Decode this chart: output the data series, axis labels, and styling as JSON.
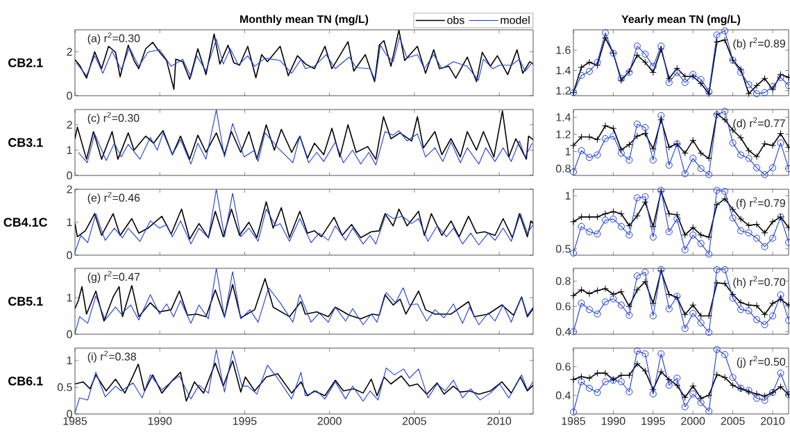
{
  "chart_data": [
    {
      "type": "line",
      "title": "Monthly mean TN (mg/L)",
      "ylabel": "CB2.1",
      "annotations": [
        "(a) r$^{2}$=0.30"
      ],
      "xlim": [
        1985,
        2012
      ],
      "ylim": [
        0,
        3
      ],
      "xticks": [
        1985,
        1990,
        1995,
        2000,
        2005,
        2010
      ],
      "yticks": [
        0,
        2
      ],
      "tick_labels": "y",
      "legend": "top right",
      "series": [
        {
          "name": "obs",
          "color": "#000000",
          "x": [
            1985.0,
            1985.27,
            1985.68,
            1986.16,
            1986.57,
            1986.98,
            1987.39,
            1987.66,
            1988.14,
            1988.48,
            1988.76,
            1989.17,
            1989.58,
            1989.99,
            1990.4,
            1990.83,
            1990.94,
            1991.35,
            1991.76,
            1992.24,
            1992.72,
            1993.2,
            1993.54,
            1994.02,
            1994.36,
            1994.7,
            1995.18,
            1995.66,
            1996.0,
            1996.34,
            1997.09,
            1997.57,
            1998.11,
            1998.59,
            1999.11,
            1999.73,
            2000.14,
            2001.09,
            2001.43,
            2002.11,
            2002.66,
            2002.93,
            2003.21,
            2003.62,
            2004.09,
            2004.43,
            2005.18,
            2005.66,
            2006.14,
            2006.48,
            2007.03,
            2007.44,
            2008.12,
            2008.66,
            2009.0,
            2009.48,
            2009.89,
            2010.5,
            2011.05,
            2011.39,
            2011.8,
            2012.0
          ],
          "values": [
            1.64,
            1.39,
            0.8,
            2.0,
            1.23,
            2.25,
            1.98,
            0.86,
            2.3,
            1.6,
            1.23,
            2.14,
            2.43,
            1.98,
            1.6,
            0.29,
            1.66,
            1.55,
            0.75,
            2.14,
            0.96,
            2.81,
            1.44,
            2.3,
            1.5,
            1.39,
            2.25,
            0.82,
            1.87,
            1.55,
            2.25,
            0.91,
            1.82,
            1.44,
            1.23,
            2.25,
            1.23,
            2.46,
            1.12,
            1.87,
            0.64,
            2.3,
            2.51,
            1.34,
            2.99,
            1.6,
            2.25,
            1.02,
            2.09,
            1.23,
            1.34,
            0.8,
            1.76,
            0.64,
            1.98,
            1.34,
            1.82,
            0.96,
            2.09,
            1.02,
            1.55,
            1.44
          ]
        },
        {
          "name": "model",
          "color": "#1c3ce0",
          "x": [
            1985.07,
            1985.68,
            1986.16,
            1986.64,
            1987.19,
            1987.73,
            1988.21,
            1988.76,
            1989.3,
            1989.99,
            1990.67,
            1991.35,
            1991.83,
            1992.17,
            1992.72,
            1993.33,
            1993.74,
            1994.15,
            1994.63,
            1995.18,
            1995.59,
            1996.2,
            1997.09,
            1997.77,
            1998.32,
            1998.57,
            1999.11,
            1999.8,
            2000.34,
            2001.16,
            2001.57,
            2002.39,
            2002.69,
            2003.0,
            2003.34,
            2003.75,
            2004.13,
            2004.57,
            2005.18,
            2005.59,
            2006.14,
            2006.62,
            2007.3,
            2008.12,
            2008.77,
            2009.07,
            2009.62,
            2010.03,
            2010.71,
            2011.19,
            2011.53,
            2011.94
          ],
          "values": [
            1.5,
            0.91,
            1.82,
            1.02,
            2.03,
            1.18,
            2.19,
            1.34,
            1.98,
            2.09,
            1.34,
            1.66,
            0.86,
            1.82,
            1.12,
            2.57,
            1.44,
            2.14,
            1.39,
            1.82,
            1.34,
            1.71,
            1.6,
            1.02,
            1.66,
            1.23,
            1.34,
            1.87,
            1.23,
            1.76,
            1.28,
            1.23,
            0.7,
            2.3,
            1.87,
            1.55,
            2.67,
            1.71,
            1.87,
            1.23,
            1.87,
            1.23,
            1.55,
            1.34,
            0.7,
            1.66,
            1.23,
            1.39,
            1.39,
            1.66,
            1.12,
            1.5
          ]
        }
      ]
    },
    {
      "type": "line",
      "title": "Yearly mean TN (mg/L)",
      "annotations": [
        "(b) r$^{2}$=0.89"
      ],
      "x": [
        1985,
        1986,
        1987,
        1988,
        1989,
        1990,
        1991,
        1992,
        1993,
        1994,
        1995,
        1996,
        1997,
        1998,
        1999,
        2000,
        2001,
        2002,
        2003,
        2004,
        2005,
        2006,
        2007,
        2008,
        2009,
        2010,
        2011,
        2012
      ],
      "xlim": [
        1985,
        2012
      ],
      "ylim": [
        1.15,
        1.8
      ],
      "xticks": [
        1985,
        1990,
        1995,
        2000,
        2005,
        2010
      ],
      "yticks": [
        1.2,
        1.4,
        1.6
      ],
      "tick_labels": "y",
      "series": [
        {
          "color": "#000000",
          "marker": "cross",
          "values": [
            1.18,
            1.43,
            1.48,
            1.45,
            1.72,
            1.57,
            1.3,
            1.39,
            1.55,
            1.48,
            1.38,
            1.61,
            1.32,
            1.42,
            1.34,
            1.34,
            1.27,
            1.17,
            1.68,
            1.7,
            1.5,
            1.41,
            1.17,
            1.25,
            1.32,
            1.21,
            1.36,
            1.33
          ]
        },
        {
          "color": "#1c3ce0",
          "marker": "circle",
          "values": [
            1.18,
            1.35,
            1.39,
            1.48,
            1.77,
            1.57,
            1.32,
            1.38,
            1.64,
            1.56,
            1.44,
            1.64,
            1.28,
            1.38,
            1.28,
            1.36,
            1.31,
            1.19,
            1.75,
            1.79,
            1.5,
            1.38,
            1.26,
            1.17,
            1.18,
            1.24,
            1.33,
            1.25
          ]
        }
      ]
    },
    {
      "type": "line",
      "ylabel": "CB3.1",
      "annotations": [
        "(c) r$^{2}$=0.30"
      ],
      "xlim": [
        1985,
        2012
      ],
      "ylim": [
        0,
        2.6
      ],
      "xticks": [
        1985,
        1990,
        1995,
        2000,
        2005,
        2010
      ],
      "yticks": [
        0,
        1,
        2
      ],
      "tick_labels": "y",
      "series": [
        {
          "color": "#000000",
          "x": [
            1985.0,
            1985.14,
            1985.68,
            1986.09,
            1986.57,
            1987.19,
            1987.53,
            1988.14,
            1988.48,
            1989.17,
            1989.64,
            1990.19,
            1990.74,
            1991.22,
            1991.76,
            1992.24,
            1992.72,
            1993.33,
            1993.81,
            1994.22,
            1994.77,
            1995.25,
            1995.72,
            1996.27,
            1996.75,
            1997.16,
            1997.77,
            1998.25,
            1998.7,
            1999.11,
            1999.66,
            2000.14,
            2000.61,
            2001.09,
            2001.57,
            2002.25,
            2002.73,
            2003.18,
            2003.62,
            2004.16,
            2004.84,
            2005.18,
            2005.53,
            2006.21,
            2006.62,
            2007.16,
            2007.71,
            2008.12,
            2008.66,
            2009.07,
            2009.69,
            2010.19,
            2010.57,
            2010.98,
            2011.6,
            2011.73,
            2012.0
          ],
          "values": [
            1.45,
            1.91,
            0.64,
            1.73,
            0.64,
            1.73,
            0.64,
            1.68,
            1.0,
            1.55,
            1.27,
            1.77,
            0.82,
            1.55,
            0.64,
            1.59,
            0.91,
            1.68,
            0.82,
            1.73,
            0.91,
            1.73,
            0.64,
            2.0,
            1.0,
            1.82,
            0.91,
            1.55,
            0.68,
            1.27,
            0.82,
            1.86,
            0.73,
            2.0,
            0.91,
            1.14,
            0.64,
            2.32,
            1.45,
            1.68,
            1.36,
            2.32,
            1.09,
            1.73,
            0.82,
            1.45,
            0.73,
            1.73,
            1.0,
            1.73,
            0.73,
            2.55,
            0.73,
            1.45,
            0.64,
            1.55,
            1.41
          ]
        },
        {
          "color": "#1c3ce0",
          "x": [
            1985.2,
            1985.72,
            1986.16,
            1986.84,
            1987.32,
            1987.73,
            1988.14,
            1988.83,
            1989.44,
            1989.85,
            1990.19,
            1990.74,
            1991.22,
            1991.83,
            1992.24,
            1992.72,
            1993.33,
            1993.81,
            1994.29,
            1994.97,
            1995.59,
            1995.79,
            1996.2,
            1996.68,
            1996.95,
            1997.84,
            1998.25,
            1998.77,
            1999.25,
            1999.66,
            2000.34,
            2000.82,
            2001.36,
            2001.84,
            2002.32,
            2002.73,
            2003.27,
            2003.75,
            2004.09,
            2004.57,
            2005.18,
            2005.66,
            2006.21,
            2006.68,
            2007.16,
            2007.71,
            2008.12,
            2008.8,
            2009.21,
            2009.75,
            2010.23,
            2010.71,
            2011.19,
            2011.53,
            2011.94
          ],
          "values": [
            0.91,
            0.5,
            1.64,
            0.59,
            1.27,
            0.73,
            1.23,
            0.64,
            1.5,
            1.0,
            1.68,
            0.82,
            1.41,
            0.45,
            1.27,
            0.64,
            2.59,
            0.73,
            2.05,
            0.73,
            1.0,
            0.55,
            1.68,
            1.32,
            1.09,
            0.5,
            1.55,
            0.5,
            0.91,
            0.55,
            1.32,
            0.5,
            1.0,
            0.45,
            0.91,
            0.41,
            1.73,
            1.59,
            1.77,
            1.36,
            1.64,
            0.73,
            1.09,
            0.55,
            1.32,
            0.5,
            1.09,
            0.45,
            1.09,
            0.55,
            1.09,
            0.55,
            1.36,
            0.73,
            1.27
          ]
        }
      ]
    },
    {
      "type": "line",
      "annotations": [
        "(d) r$^{2}$=0.77"
      ],
      "x": [
        1985,
        1986,
        1987,
        1988,
        1989,
        1990,
        1991,
        1992,
        1993,
        1994,
        1995,
        1996,
        1997,
        1998,
        1999,
        2000,
        2001,
        2002,
        2003,
        2004,
        2005,
        2006,
        2007,
        2008,
        2009,
        2010,
        2011,
        2012
      ],
      "xlim": [
        1985,
        2012
      ],
      "ylim": [
        0.72,
        1.49
      ],
      "xticks": [
        1985,
        1990,
        1995,
        2000,
        2005,
        2010
      ],
      "yticks": [
        0.8,
        1,
        1.2,
        1.4
      ],
      "tick_labels": "y",
      "series": [
        {
          "color": "#000000",
          "marker": "cross",
          "values": [
            1.07,
            1.17,
            1.17,
            1.14,
            1.3,
            1.27,
            1.02,
            1.08,
            1.18,
            1.21,
            1.03,
            1.37,
            1.05,
            1.09,
            0.98,
            1.13,
            0.98,
            0.92,
            1.44,
            1.37,
            1.25,
            1.16,
            1.01,
            0.94,
            1.09,
            1.07,
            1.21,
            1.05
          ]
        },
        {
          "color": "#1c3ce0",
          "marker": "circle",
          "values": [
            0.76,
            1.01,
            0.93,
            0.96,
            1.15,
            1.18,
            0.98,
            0.9,
            1.32,
            1.28,
            0.9,
            1.42,
            0.84,
            1.09,
            0.74,
            0.92,
            0.8,
            0.73,
            1.43,
            1.47,
            1.1,
            0.96,
            0.92,
            0.81,
            0.73,
            0.81,
            1.1,
            0.8
          ]
        }
      ]
    },
    {
      "type": "line",
      "ylabel": "CB4.1C",
      "annotations": [
        "(e) r$^{2}$=0.46"
      ],
      "xlim": [
        1985,
        2012
      ],
      "ylim": [
        0,
        2
      ],
      "xticks": [
        1985,
        1990,
        1995,
        2000,
        2005,
        2010
      ],
      "yticks": [
        0,
        1,
        2
      ],
      "tick_labels": "y",
      "series": [
        {
          "color": "#000000",
          "x": [
            1985.0,
            1985.14,
            1985.61,
            1986.16,
            1986.57,
            1987.25,
            1987.66,
            1988.35,
            1988.76,
            1989.3,
            1990.12,
            1990.67,
            1991.28,
            1991.76,
            1992.31,
            1992.86,
            1993.27,
            1993.74,
            1994.22,
            1994.7,
            1995.25,
            1995.72,
            1996.27,
            1996.68,
            1997.16,
            1997.64,
            1998.25,
            1998.7,
            1999.11,
            1999.52,
            2000.27,
            2000.75,
            2001.3,
            2001.84,
            2002.46,
            2002.93,
            2003.27,
            2003.75,
            2004.09,
            2004.57,
            2005.25,
            2005.59,
            2006.0,
            2006.62,
            2007.16,
            2007.64,
            2008.19,
            2008.66,
            2009.14,
            2009.75,
            2010.23,
            2010.78,
            2011.19,
            2011.66,
            2011.87,
            2012.0
          ],
          "values": [
            0.96,
            0.56,
            0.74,
            1.26,
            0.6,
            1.26,
            0.6,
            1.11,
            0.67,
            0.82,
            1.18,
            0.64,
            1.4,
            0.49,
            0.96,
            0.53,
            1.33,
            0.56,
            1.4,
            0.6,
            1.0,
            0.53,
            1.62,
            0.82,
            1.44,
            0.53,
            1.33,
            0.67,
            0.74,
            0.56,
            1.15,
            0.6,
            0.93,
            0.53,
            0.71,
            0.74,
            1.26,
            0.89,
            1.4,
            0.89,
            1.33,
            0.6,
            1.26,
            0.6,
            1.04,
            0.56,
            1.18,
            0.67,
            0.71,
            0.6,
            1.11,
            0.53,
            1.26,
            0.56,
            1.04,
            0.96
          ]
        },
        {
          "color": "#1c3ce0",
          "x": [
            1985.0,
            1985.34,
            1985.75,
            1986.23,
            1986.78,
            1987.32,
            1987.8,
            1988.14,
            1988.83,
            1989.44,
            1989.99,
            1990.4,
            1990.74,
            1991.22,
            1991.83,
            1992.31,
            1992.86,
            1993.33,
            1993.81,
            1994.29,
            1994.77,
            1995.25,
            1995.79,
            1996.27,
            1996.82,
            1997.09,
            1997.64,
            1998.25,
            1998.91,
            1999.39,
            1999.93,
            2000.34,
            2000.95,
            2001.36,
            2001.98,
            2002.39,
            2002.73,
            2003.34,
            2003.75,
            2004.3,
            2004.84,
            2005.25,
            2005.8,
            2006.34,
            2006.89,
            2007.3,
            2007.84,
            2008.32,
            2008.8,
            2009.35,
            2009.75,
            2010.23,
            2010.71,
            2011.25,
            2011.66,
            2012.0
          ],
          "values": [
            0.09,
            0.6,
            0.38,
            1.26,
            0.45,
            0.82,
            0.53,
            0.82,
            0.42,
            1.04,
            0.82,
            0.93,
            0.56,
            1.04,
            0.34,
            0.82,
            0.53,
            2.0,
            0.56,
            1.88,
            0.56,
            0.82,
            0.42,
            1.4,
            0.89,
            0.96,
            0.42,
            1.11,
            0.38,
            0.67,
            0.45,
            0.89,
            0.45,
            0.82,
            0.34,
            0.6,
            0.34,
            1.26,
            1.11,
            1.18,
            0.96,
            1.11,
            0.42,
            0.89,
            0.56,
            0.82,
            0.34,
            0.67,
            0.31,
            0.67,
            0.45,
            0.82,
            0.42,
            1.26,
            0.67,
            0.93
          ]
        }
      ]
    },
    {
      "type": "line",
      "annotations": [
        "(f) r$^{2}$=0.79"
      ],
      "x": [
        1985,
        1986,
        1987,
        1988,
        1989,
        1990,
        1991,
        1992,
        1993,
        1994,
        1995,
        1996,
        1997,
        1998,
        1999,
        2000,
        2001,
        2002,
        2003,
        2004,
        2005,
        2006,
        2007,
        2008,
        2009,
        2010,
        2011,
        2012
      ],
      "xlim": [
        1985,
        2012
      ],
      "ylim": [
        0.44,
        1.06
      ],
      "xticks": [
        1985,
        1990,
        1995,
        2000,
        2005,
        2010
      ],
      "yticks": [
        0.5,
        1
      ],
      "tick_labels": "y",
      "series": [
        {
          "color": "#000000",
          "marker": "cross",
          "values": [
            0.755,
            0.8,
            0.8,
            0.8,
            0.83,
            0.85,
            0.83,
            0.717,
            0.81,
            0.94,
            0.71,
            1.04,
            0.83,
            0.82,
            0.63,
            0.7,
            0.63,
            0.61,
            0.915,
            0.97,
            0.87,
            0.78,
            0.72,
            0.73,
            0.65,
            0.755,
            0.8,
            0.7
          ]
        },
        {
          "color": "#1c3ce0",
          "marker": "circle",
          "values": [
            0.46,
            0.71,
            0.66,
            0.64,
            0.77,
            0.78,
            0.71,
            0.63,
            0.98,
            0.99,
            0.61,
            1.05,
            0.66,
            0.78,
            0.49,
            0.63,
            0.55,
            0.45,
            1.05,
            1.04,
            0.79,
            0.67,
            0.65,
            0.6,
            0.52,
            0.6,
            0.8,
            0.56
          ]
        }
      ]
    },
    {
      "type": "line",
      "ylabel": "CB5.1",
      "annotations": [
        "(g) r$^{2}$=0.47"
      ],
      "xlim": [
        1985,
        2012
      ],
      "ylim": [
        0,
        1.8
      ],
      "xticks": [
        1985,
        1990,
        1995,
        2000,
        2005,
        2010
      ],
      "yticks": [
        0,
        1
      ],
      "tick_labels": "y",
      "series": [
        {
          "color": "#000000",
          "x": [
            1985.0,
            1985.2,
            1985.41,
            1985.68,
            1986.23,
            1986.71,
            1987.25,
            1987.6,
            1987.8,
            1988.35,
            1988.76,
            1989.44,
            1989.99,
            1990.67,
            1991.15,
            1991.63,
            1992.17,
            1992.72,
            1993.27,
            1993.81,
            1994.29,
            1994.77,
            1995.59,
            1996.2,
            1996.68,
            1997.64,
            1998.32,
            1998.57,
            1999.25,
            1999.93,
            2000.34,
            2001.16,
            2001.84,
            2002.52,
            2002.93,
            2003.27,
            2003.75,
            2004.16,
            2004.5,
            2004.84,
            2005.25,
            2005.66,
            2006.21,
            2007.16,
            2008.19,
            2008.53,
            2009.35,
            2010.16,
            2010.85,
            2011.32,
            2011.66,
            2012.0
          ],
          "values": [
            0.7,
            0.92,
            1.3,
            0.55,
            1.18,
            0.36,
            1.02,
            1.3,
            0.48,
            1.33,
            0.48,
            0.86,
            0.61,
            0.67,
            1.18,
            0.52,
            0.55,
            0.48,
            1.21,
            0.48,
            1.36,
            0.45,
            0.67,
            1.52,
            0.74,
            0.48,
            0.89,
            0.55,
            0.61,
            0.48,
            0.74,
            0.52,
            0.42,
            0.55,
            0.52,
            1.08,
            0.8,
            0.96,
            0.55,
            0.83,
            1.18,
            0.67,
            0.55,
            0.55,
            0.89,
            0.48,
            0.55,
            0.8,
            0.52,
            1.02,
            0.48,
            0.7
          ]
        },
        {
          "color": "#1c3ce0",
          "x": [
            1985.0,
            1985.27,
            1985.75,
            1986.23,
            1986.78,
            1987.39,
            1987.73,
            1988.28,
            1988.76,
            1989.44,
            1989.99,
            1990.4,
            1990.81,
            1991.22,
            1991.83,
            1992.31,
            1992.86,
            1993.33,
            1993.81,
            1994.29,
            1994.77,
            1995.31,
            1995.79,
            1996.41,
            1997.09,
            1997.84,
            1998.25,
            1998.91,
            1999.39,
            1999.93,
            2000.34,
            2000.95,
            2001.36,
            2001.98,
            2002.46,
            2002.8,
            2003.34,
            2003.89,
            2004.34,
            2004.71,
            2005.18,
            2005.73,
            2006.21,
            2006.75,
            2007.3,
            2007.84,
            2008.25,
            2008.8,
            2009.35,
            2009.75,
            2010.23,
            2010.71,
            2011.32,
            2011.66,
            2012.0
          ],
          "values": [
            0.01,
            0.48,
            0.3,
            1.05,
            0.39,
            0.74,
            0.55,
            0.8,
            0.39,
            1.08,
            0.55,
            0.83,
            0.48,
            0.92,
            0.3,
            0.8,
            0.42,
            1.8,
            0.45,
            1.71,
            0.42,
            0.67,
            0.33,
            1.27,
            0.86,
            0.33,
            1.08,
            0.33,
            0.58,
            0.33,
            0.74,
            0.36,
            0.7,
            0.26,
            0.55,
            0.33,
            1.14,
            0.86,
            1.27,
            0.8,
            0.83,
            0.36,
            0.67,
            0.45,
            0.83,
            0.3,
            0.74,
            0.26,
            0.58,
            0.36,
            0.8,
            0.33,
            1.02,
            0.52,
            0.74
          ]
        }
      ]
    },
    {
      "type": "line",
      "annotations": [
        "(h) r$^{2}$=0.70"
      ],
      "x": [
        1985,
        1986,
        1987,
        1988,
        1989,
        1990,
        1991,
        1992,
        1993,
        1994,
        1995,
        1996,
        1997,
        1998,
        1999,
        2000,
        2001,
        2002,
        2003,
        2004,
        2005,
        2006,
        2007,
        2008,
        2009,
        2010,
        2011,
        2012
      ],
      "xlim": [
        1985,
        2012
      ],
      "ylim": [
        0.38,
        0.9
      ],
      "xticks": [
        1985,
        1990,
        1995,
        2000,
        2005,
        2010
      ],
      "yticks": [
        0.4,
        0.6,
        0.8
      ],
      "tick_labels": "y",
      "series": [
        {
          "color": "#000000",
          "marker": "cross",
          "values": [
            0.685,
            0.73,
            0.7,
            0.725,
            0.74,
            0.695,
            0.715,
            0.6,
            0.73,
            0.795,
            0.625,
            0.88,
            0.695,
            0.67,
            0.535,
            0.61,
            0.525,
            0.525,
            0.785,
            0.78,
            0.695,
            0.63,
            0.61,
            0.605,
            0.535,
            0.625,
            0.655,
            0.61
          ]
        },
        {
          "color": "#1c3ce0",
          "marker": "circle",
          "values": [
            0.4,
            0.625,
            0.575,
            0.54,
            0.635,
            0.66,
            0.61,
            0.53,
            0.84,
            0.87,
            0.525,
            0.89,
            0.58,
            0.68,
            0.425,
            0.545,
            0.47,
            0.395,
            0.89,
            0.89,
            0.665,
            0.575,
            0.565,
            0.495,
            0.455,
            0.525,
            0.69,
            0.49
          ]
        }
      ]
    },
    {
      "type": "line",
      "ylabel": "CB6.1",
      "annotations": [
        "(i) r$^{2}$=0.38"
      ],
      "xlim": [
        1985,
        2012
      ],
      "ylim": [
        0,
        1.23
      ],
      "xticks": [
        1985,
        1990,
        1995,
        2000,
        2005,
        2010
      ],
      "yticks": [
        0,
        0.5,
        1
      ],
      "series": [
        {
          "color": "#000000",
          "x": [
            1985.0,
            1985.48,
            1985.89,
            1986.23,
            1986.84,
            1987.39,
            1987.94,
            1988.42,
            1988.73,
            1989.1,
            1989.58,
            1990.12,
            1990.67,
            1991.22,
            1991.56,
            1992.04,
            1992.58,
            1993.27,
            1993.74,
            1994.29,
            1994.77,
            1995.04,
            1995.59,
            1996.27,
            1996.95,
            1997.77,
            1998.32,
            1998.7,
            1999.11,
            1999.73,
            2000.34,
            2000.82,
            2001.43,
            2001.98,
            2002.46,
            2002.8,
            2003.21,
            2003.62,
            2004.23,
            2004.71,
            2005.18,
            2005.73,
            2006.34,
            2006.75,
            2007.3,
            2007.71,
            2008.25,
            2008.8,
            2009.48,
            2010.16,
            2010.71,
            2011.25,
            2011.66,
            2012.0
          ],
          "values": [
            0.56,
            0.6,
            0.47,
            0.73,
            0.43,
            0.65,
            0.39,
            0.71,
            0.93,
            0.43,
            0.73,
            0.39,
            0.6,
            0.78,
            0.24,
            0.6,
            0.39,
            0.95,
            0.52,
            0.99,
            0.41,
            0.69,
            0.43,
            0.69,
            0.75,
            0.39,
            0.6,
            0.34,
            0.43,
            0.34,
            0.63,
            0.43,
            0.47,
            0.39,
            0.65,
            0.34,
            0.69,
            0.56,
            0.71,
            0.52,
            0.56,
            0.37,
            0.58,
            0.37,
            0.52,
            0.41,
            0.43,
            0.37,
            0.43,
            0.6,
            0.39,
            0.69,
            0.43,
            0.54
          ]
        },
        {
          "color": "#1c3ce0",
          "x": [
            1985.0,
            1985.27,
            1985.75,
            1986.23,
            1986.78,
            1987.39,
            1987.73,
            1988.42,
            1988.96,
            1989.44,
            1990.12,
            1990.67,
            1991.15,
            1991.83,
            1992.31,
            1992.86,
            1993.33,
            1993.81,
            1994.29,
            1994.84,
            1995.18,
            1995.72,
            1996.34,
            1996.89,
            1997.77,
            1998.32,
            1998.57,
            1999.25,
            1999.73,
            2000.34,
            2000.95,
            2001.36,
            2001.98,
            2002.39,
            2002.86,
            2003.34,
            2003.82,
            2004.37,
            2004.71,
            2005.25,
            2005.8,
            2006.34,
            2006.82,
            2007.3,
            2007.84,
            2008.32,
            2008.87,
            2009.48,
            2010.03,
            2010.57,
            2011.32,
            2011.66,
            2012.0
          ],
          "values": [
            0.02,
            0.3,
            0.26,
            0.78,
            0.32,
            0.52,
            0.43,
            0.58,
            0.3,
            0.73,
            0.45,
            0.6,
            0.71,
            0.28,
            0.54,
            0.39,
            1.2,
            0.41,
            1.18,
            0.52,
            0.52,
            0.37,
            0.91,
            0.69,
            0.28,
            0.78,
            0.34,
            0.43,
            0.28,
            0.6,
            0.28,
            0.52,
            0.24,
            0.43,
            0.26,
            0.86,
            0.73,
            0.84,
            0.67,
            0.84,
            0.3,
            0.56,
            0.43,
            0.63,
            0.3,
            0.47,
            0.26,
            0.39,
            0.56,
            0.3,
            0.73,
            0.45,
            0.6
          ]
        }
      ]
    },
    {
      "type": "line",
      "annotations": [
        "(j) r$^{2}$=0.50"
      ],
      "x": [
        1985,
        1986,
        1987,
        1988,
        1989,
        1990,
        1991,
        1992,
        1993,
        1994,
        1995,
        1996,
        1997,
        1998,
        1999,
        2000,
        2001,
        2002,
        2003,
        2004,
        2005,
        2006,
        2007,
        2008,
        2009,
        2010,
        2011,
        2012
      ],
      "xlim": [
        1985,
        2012
      ],
      "ylim": [
        0.27,
        0.73
      ],
      "xticks": [
        1985,
        1990,
        1995,
        2000,
        2005,
        2010
      ],
      "yticks": [
        0.4,
        0.6
      ],
      "series": [
        {
          "color": "#000000",
          "marker": "cross",
          "values": [
            0.51,
            0.53,
            0.52,
            0.555,
            0.555,
            0.51,
            0.54,
            0.54,
            0.62,
            0.57,
            0.44,
            0.565,
            0.51,
            0.47,
            0.385,
            0.465,
            0.38,
            0.4,
            0.545,
            0.525,
            0.47,
            0.445,
            0.425,
            0.41,
            0.395,
            0.42,
            0.46,
            0.405
          ]
        },
        {
          "color": "#1c3ce0",
          "marker": "circle",
          "values": [
            0.283,
            0.495,
            0.45,
            0.42,
            0.495,
            0.505,
            0.495,
            0.425,
            0.71,
            0.69,
            0.41,
            0.69,
            0.47,
            0.52,
            0.32,
            0.41,
            0.35,
            0.29,
            0.72,
            0.685,
            0.525,
            0.45,
            0.435,
            0.38,
            0.365,
            0.42,
            0.555,
            0.405
          ]
        }
      ]
    }
  ]
}
